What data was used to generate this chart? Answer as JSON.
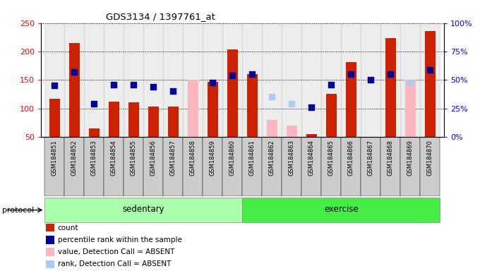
{
  "title": "GDS3134 / 1397761_at",
  "samples": [
    "GSM184851",
    "GSM184852",
    "GSM184853",
    "GSM184854",
    "GSM184855",
    "GSM184856",
    "GSM184857",
    "GSM184858",
    "GSM184859",
    "GSM184860",
    "GSM184861",
    "GSM184862",
    "GSM184863",
    "GSM184864",
    "GSM184865",
    "GSM184866",
    "GSM184867",
    "GSM184868",
    "GSM184869",
    "GSM184870"
  ],
  "groups": [
    "sedentary",
    "sedentary",
    "sedentary",
    "sedentary",
    "sedentary",
    "sedentary",
    "sedentary",
    "sedentary",
    "sedentary",
    "sedentary",
    "exercise",
    "exercise",
    "exercise",
    "exercise",
    "exercise",
    "exercise",
    "exercise",
    "exercise",
    "exercise",
    "exercise"
  ],
  "red_bars": [
    117,
    215,
    65,
    112,
    111,
    103,
    103,
    null,
    147,
    204,
    160,
    null,
    null,
    55,
    126,
    181,
    null,
    223,
    null,
    236
  ],
  "pink_bars": [
    null,
    null,
    null,
    null,
    null,
    null,
    null,
    150,
    null,
    null,
    null,
    80,
    70,
    null,
    null,
    null,
    null,
    null,
    150,
    null
  ],
  "blue_dots_pct": [
    45,
    57,
    29,
    46,
    46,
    44,
    40,
    null,
    48,
    54,
    55,
    null,
    null,
    26,
    46,
    55,
    50,
    55,
    null,
    59
  ],
  "light_blue_dots_pct": [
    null,
    null,
    null,
    null,
    null,
    null,
    null,
    null,
    null,
    null,
    null,
    35,
    29,
    null,
    null,
    null,
    null,
    null,
    48,
    null
  ],
  "ylim_left": [
    50,
    250
  ],
  "ylim_right": [
    0,
    100
  ],
  "left_ticks": [
    50,
    100,
    150,
    200,
    250
  ],
  "right_ticks": [
    0,
    25,
    50,
    75,
    100
  ],
  "right_tick_labels": [
    "0%",
    "25%",
    "50%",
    "75%",
    "100%"
  ],
  "group_sedentary_color": "#aaffaa",
  "group_exercise_color": "#44ee44",
  "group_label_sedentary": "sedentary",
  "group_label_exercise": "exercise",
  "protocol_label": "protocol",
  "legend_items": [
    {
      "label": "count",
      "color": "#cc2200"
    },
    {
      "label": "percentile rank within the sample",
      "color": "#000099"
    },
    {
      "label": "value, Detection Call = ABSENT",
      "color": "#ffb6c1"
    },
    {
      "label": "rank, Detection Call = ABSENT",
      "color": "#aaccee"
    }
  ],
  "bar_color_red": "#cc2200",
  "bar_color_pink": "#ffb6c1",
  "dot_color_blue": "#000099",
  "dot_color_light_blue": "#aaccee",
  "col_bg_color": "#cccccc",
  "bar_width": 0.55,
  "dot_size": 40,
  "col_alpha": 0.35
}
